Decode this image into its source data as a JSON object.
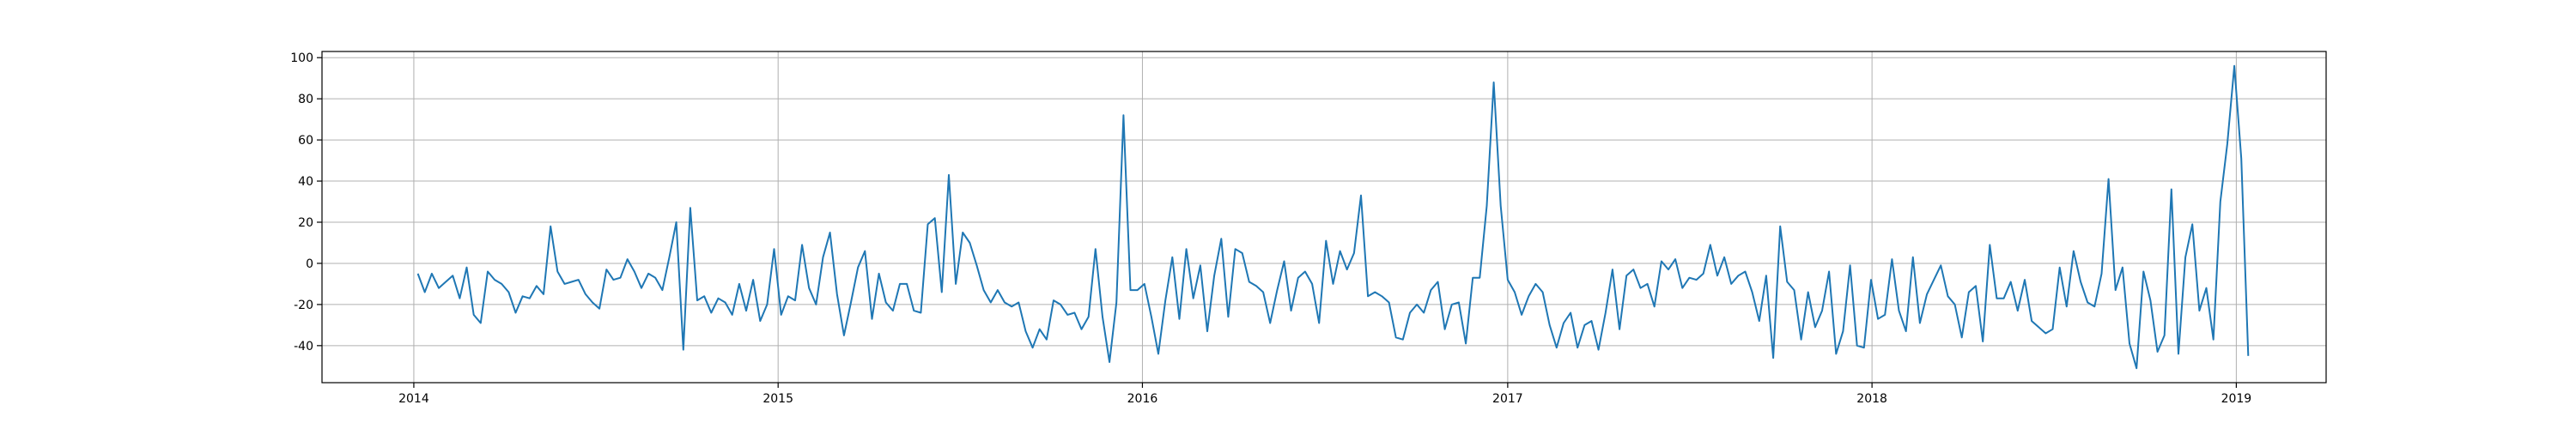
{
  "chart_data": {
    "type": "line",
    "title": "",
    "xlabel": "",
    "ylabel": "",
    "x_start": "2014-01-05",
    "x_step_days": 7,
    "xlim": [
      "2013-10-01",
      "2019-04-01"
    ],
    "ylim": [
      -58,
      103
    ],
    "x_ticks": [
      "2014",
      "2015",
      "2016",
      "2017",
      "2018",
      "2019"
    ],
    "x_tick_dates": [
      "2014-01-01",
      "2015-01-01",
      "2016-01-01",
      "2017-01-01",
      "2018-01-01",
      "2019-01-01"
    ],
    "y_ticks": [
      -40,
      -20,
      0,
      20,
      40,
      60,
      80,
      100
    ],
    "grid": true,
    "line_color": "#1f77b4",
    "series": [
      {
        "values": [
          -5,
          -14,
          -5,
          -12,
          -9,
          -6,
          -17,
          -2,
          -25,
          -29,
          -4,
          -8,
          -10,
          -14,
          -24,
          -16,
          -17,
          -11,
          -15,
          18,
          -4,
          -10,
          -9,
          -8,
          -15,
          -19,
          -22,
          -3,
          -8,
          -7,
          2,
          -4,
          -12,
          -5,
          -7,
          -13,
          3,
          20,
          -42,
          27,
          -18,
          -16,
          -24,
          -17,
          -19,
          -25,
          -10,
          -23,
          -8,
          -28,
          -20,
          7,
          -25,
          -16,
          -18,
          9,
          -12,
          -20,
          3,
          15,
          -15,
          -35,
          -19,
          -2,
          6,
          -27,
          -5,
          -19,
          -23,
          -10,
          -10,
          -23,
          -24,
          19,
          22,
          -14,
          43,
          -10,
          15,
          10,
          -1,
          -13,
          -19,
          -13,
          -19,
          -21,
          -19,
          -33,
          -41,
          -32,
          -37,
          -18,
          -20,
          -25,
          -24,
          -32,
          -26,
          7,
          -26,
          -48,
          -19,
          72,
          -13,
          -13,
          -10,
          -26,
          -44,
          -18,
          3,
          -27,
          7,
          -17,
          -1,
          -33,
          -6,
          12,
          -26,
          7,
          5,
          -9,
          -11,
          -14,
          -29,
          -13,
          1,
          -23,
          -7,
          -4,
          -10,
          -29,
          11,
          -10,
          6,
          -3,
          5,
          33,
          -16,
          -14,
          -16,
          -19,
          -36,
          -37,
          -24,
          -20,
          -24,
          -13,
          -9,
          -32,
          -20,
          -19,
          -39,
          -7,
          -7,
          28,
          88,
          28,
          -8,
          -14,
          -25,
          -16,
          -10,
          -14,
          -30,
          -41,
          -29,
          -24,
          -41,
          -30,
          -28,
          -42,
          -24,
          -3,
          -32,
          -6,
          -3,
          -12,
          -10,
          -21,
          1,
          -3,
          2,
          -12,
          -7,
          -8,
          -5,
          9,
          -6,
          3,
          -10,
          -6,
          -4,
          -14,
          -28,
          -6,
          -46,
          18,
          -9,
          -13,
          -37,
          -14,
          -31,
          -23,
          -4,
          -44,
          -33,
          -1,
          -40,
          -41,
          -8,
          -27,
          -25,
          2,
          -23,
          -33,
          3,
          -29,
          -15,
          -8,
          -1,
          -16,
          -20,
          -36,
          -14,
          -11,
          -38,
          9,
          -17,
          -17,
          -9,
          -23,
          -8,
          -28,
          -31,
          -34,
          -32,
          -2,
          -21,
          6,
          -9,
          -19,
          -21,
          -5,
          41,
          -13,
          -2,
          -39,
          -51,
          -4,
          -18,
          -43,
          -35,
          36,
          -44,
          3,
          19,
          -23,
          -12,
          -37,
          30,
          58,
          96,
          51,
          -45
        ]
      }
    ]
  }
}
